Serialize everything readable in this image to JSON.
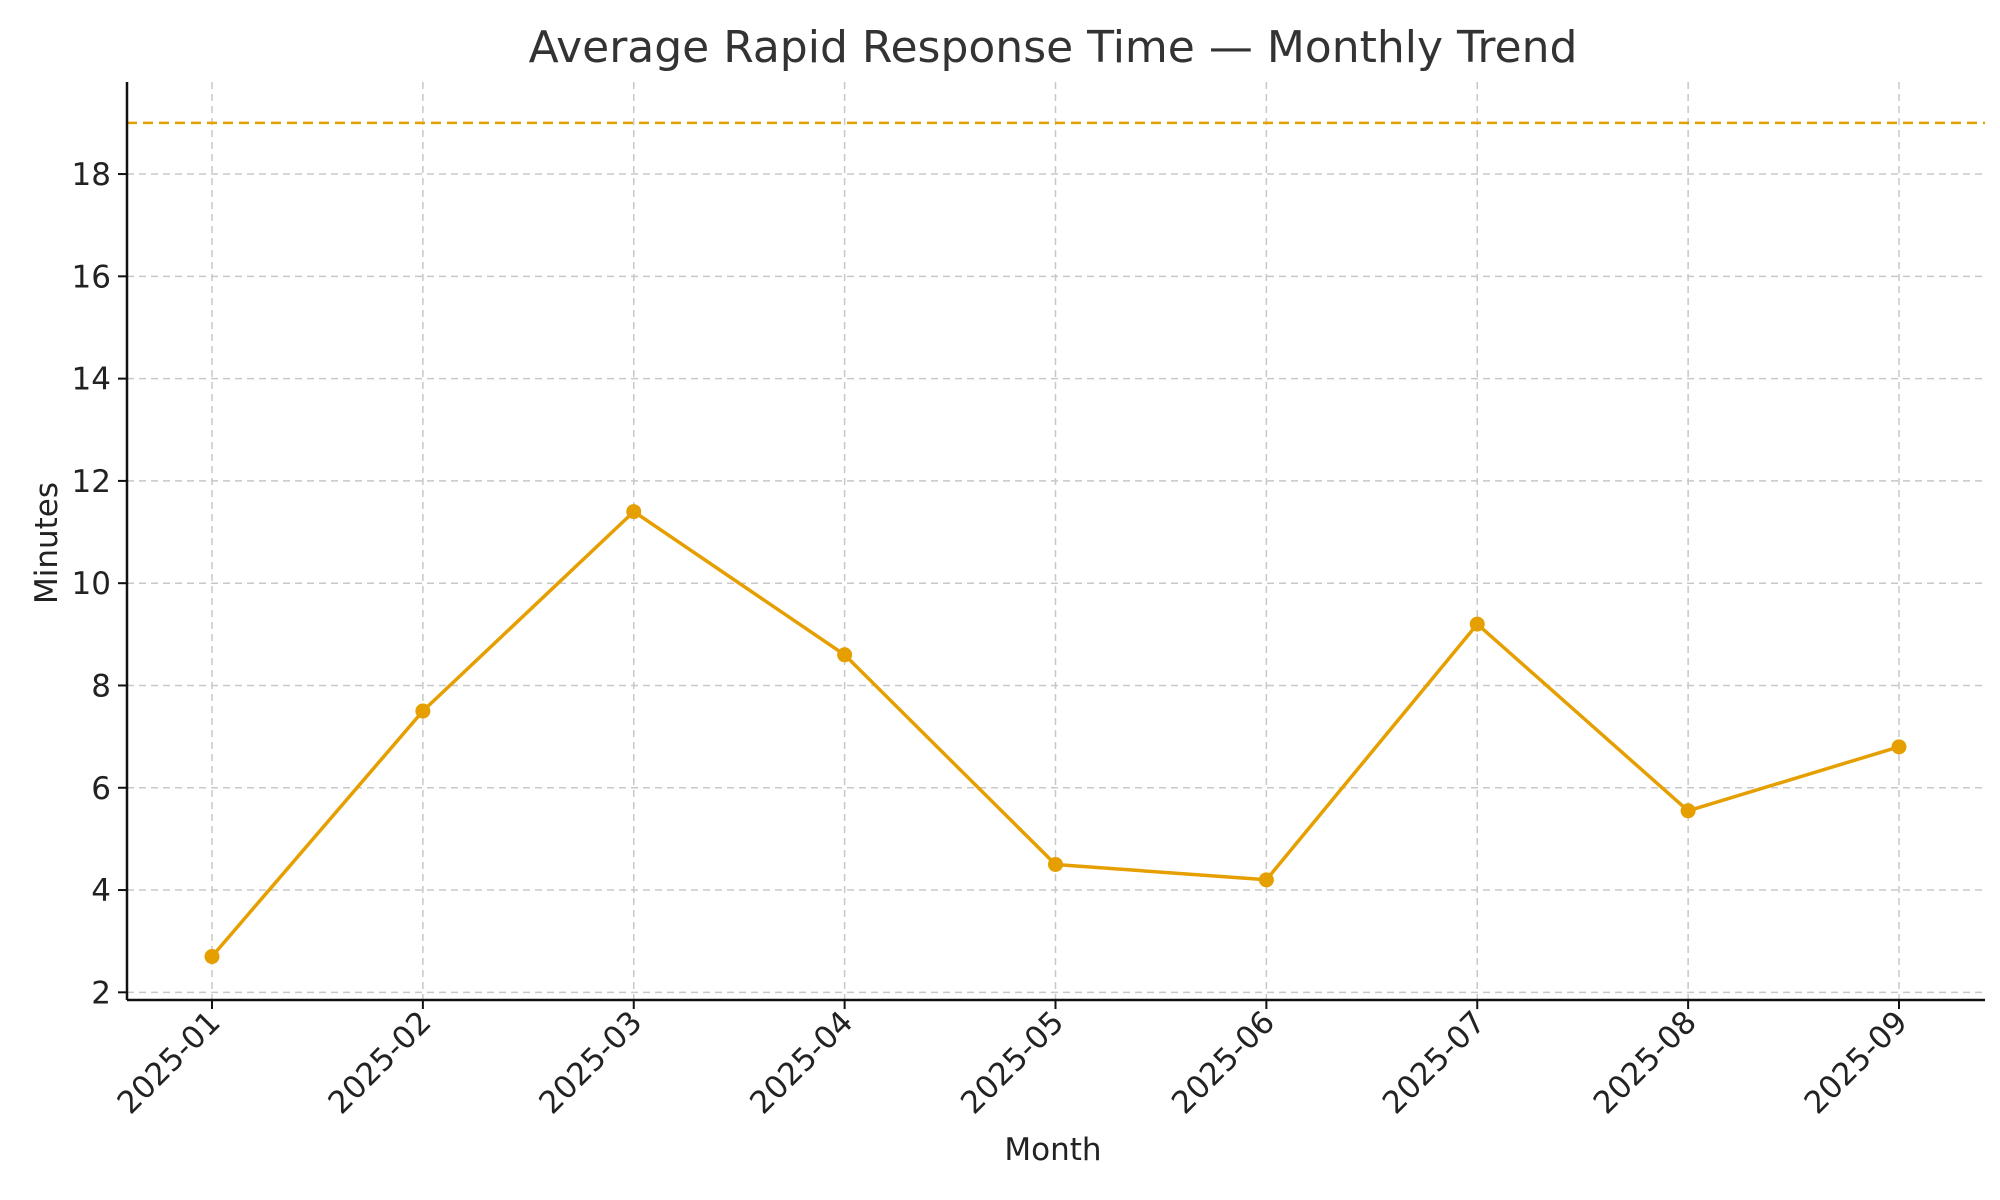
{
  "chart_data": {
    "type": "line",
    "title": "Average Rapid Response Time — Monthly Trend",
    "xlabel": "Month",
    "ylabel": "Minutes",
    "categories": [
      "2025-01",
      "2025-02",
      "2025-03",
      "2025-04",
      "2025-05",
      "2025-06",
      "2025-07",
      "2025-08",
      "2025-09"
    ],
    "series": [
      {
        "name": "Average Rapid Response Time",
        "values": [
          2.7,
          7.5,
          11.4,
          8.6,
          4.5,
          4.2,
          9.2,
          5.55,
          6.8
        ],
        "color": "#E69F00"
      }
    ],
    "reference_line": {
      "value": 19.0,
      "color": "#E69F00",
      "style": "dashed"
    },
    "ylim": [
      1.85,
      19.8
    ],
    "yticks": [
      2,
      4,
      6,
      8,
      10,
      12,
      14,
      16,
      18
    ],
    "grid": true,
    "legend": "none"
  }
}
